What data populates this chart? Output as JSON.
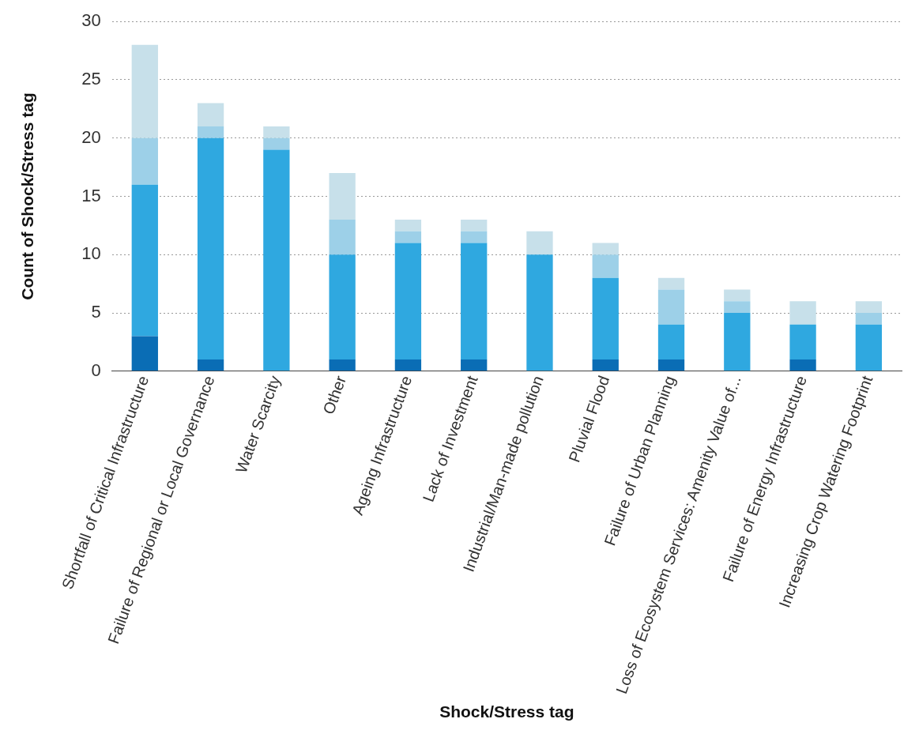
{
  "chart_data": {
    "type": "bar",
    "stacked": true,
    "xlabel": "Shock/Stress tag",
    "ylabel": "Count of Shock/Stress tag",
    "categories": [
      "Shortfall of Critical Infrastructure",
      "Failure of Regional or Local Governance",
      "Water Scarcity",
      "Other",
      "Ageing Infrastructure",
      "Lack of Investment",
      "Industrial/Man-made pollution",
      "Pluvial Flood",
      "Failure of Urban Planning",
      "Loss of Ecosystem Services: Amenity Value of...",
      "Failure of Energy Infrastructure",
      "Increasing Crop Watering Footprint"
    ],
    "series": [
      {
        "color": "#0a6db5",
        "values": [
          3,
          1,
          0,
          1,
          1,
          1,
          0,
          1,
          1,
          0,
          1,
          0
        ]
      },
      {
        "color": "#2fa8e0",
        "values": [
          13,
          19,
          19,
          9,
          10,
          10,
          10,
          7,
          3,
          5,
          3,
          4
        ]
      },
      {
        "color": "#9dd0e8",
        "values": [
          4,
          1,
          1,
          3,
          1,
          1,
          0,
          2,
          3,
          1,
          0,
          1
        ]
      },
      {
        "color": "#c7e0ea",
        "values": [
          8,
          2,
          1,
          4,
          1,
          1,
          2,
          1,
          1,
          1,
          2,
          1
        ]
      }
    ],
    "ylim": [
      0,
      30
    ],
    "yticks": [
      0,
      5,
      10,
      15,
      20,
      25,
      30
    ],
    "grid": "y",
    "legend": false
  }
}
